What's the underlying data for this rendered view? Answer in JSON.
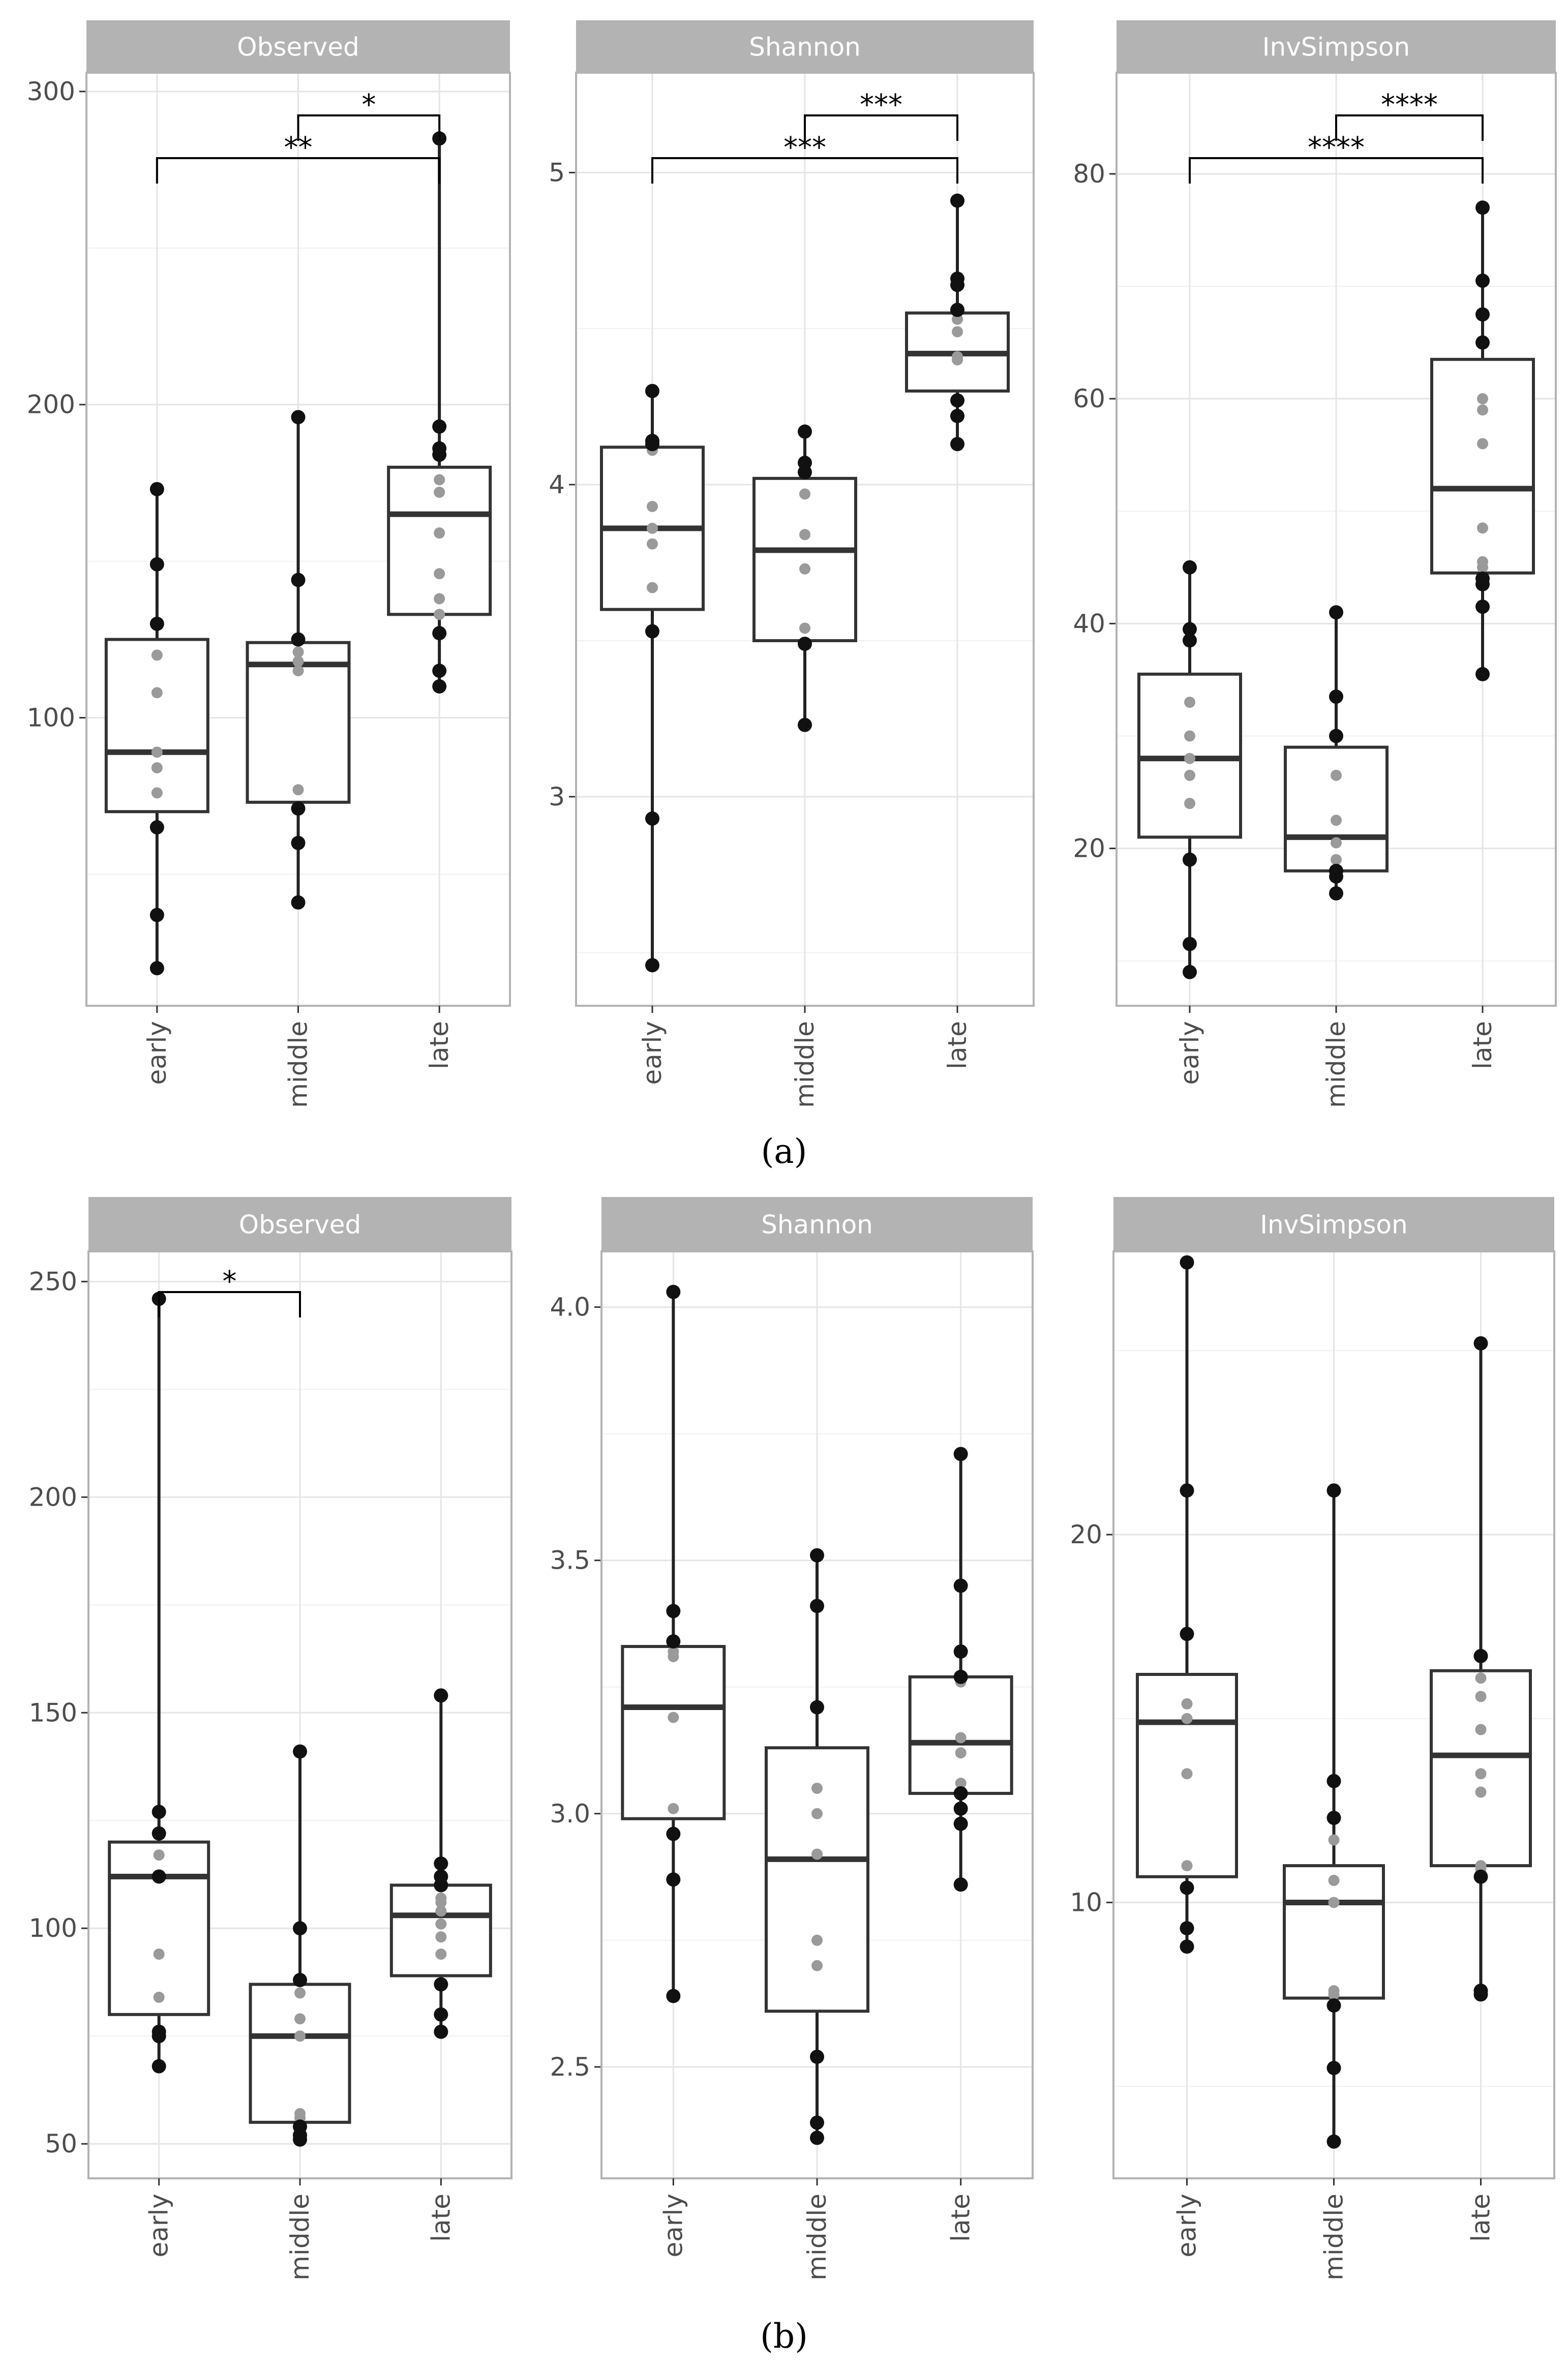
{
  "chart_data": [
    {
      "type": "box",
      "panel": "a",
      "title": "Observed",
      "categories": [
        "early",
        "middle",
        "late"
      ],
      "ylim": [
        8,
        306
      ],
      "yticks": [
        100,
        200,
        300
      ],
      "groups": [
        {
          "name": "early",
          "q1": 70,
          "median": 89,
          "q3": 125,
          "whisker_low": 20,
          "whisker_high": 173,
          "points_outer": [
            20,
            37,
            65,
            149,
            130,
            173
          ],
          "points_inner": [
            76,
            84,
            89,
            108,
            120
          ]
        },
        {
          "name": "middle",
          "q1": 73,
          "median": 117,
          "q3": 124,
          "whisker_low": 41,
          "whisker_high": 196,
          "points_outer": [
            41,
            60,
            71,
            125,
            144,
            196
          ],
          "points_inner": [
            77,
            115,
            118,
            121
          ]
        },
        {
          "name": "late",
          "q1": 133,
          "median": 165,
          "q3": 180,
          "whisker_low": 110,
          "whisker_high": 285,
          "points_outer": [
            110,
            115,
            127,
            184,
            186,
            193,
            285
          ],
          "points_inner": [
            133,
            138,
            146,
            159,
            172,
            176
          ]
        }
      ],
      "comparisons": [
        {
          "from": "middle",
          "to": "late",
          "label": "*",
          "level": 1
        },
        {
          "from": "early",
          "to": "late",
          "label": "**",
          "level": 0
        }
      ]
    },
    {
      "type": "box",
      "panel": "a",
      "title": "Shannon",
      "categories": [
        "early",
        "middle",
        "late"
      ],
      "ylim": [
        2.33,
        5.32
      ],
      "yticks": [
        3,
        4,
        5
      ],
      "groups": [
        {
          "name": "early",
          "q1": 3.6,
          "median": 3.86,
          "q3": 4.12,
          "whisker_low": 2.46,
          "whisker_high": 4.3,
          "points_outer": [
            2.46,
            2.93,
            3.53,
            4.13,
            4.14,
            4.3
          ],
          "points_inner": [
            3.67,
            3.81,
            3.86,
            3.93,
            4.11
          ]
        },
        {
          "name": "middle",
          "q1": 3.5,
          "median": 3.79,
          "q3": 4.02,
          "whisker_low": 3.23,
          "whisker_high": 4.17,
          "points_outer": [
            3.23,
            3.49,
            4.04,
            4.07,
            4.17
          ],
          "points_inner": [
            3.54,
            3.73,
            3.84,
            3.97
          ]
        },
        {
          "name": "late",
          "q1": 4.3,
          "median": 4.42,
          "q3": 4.55,
          "whisker_low": 4.13,
          "whisker_high": 4.91,
          "points_outer": [
            4.13,
            4.22,
            4.27,
            4.56,
            4.64,
            4.66,
            4.91
          ],
          "points_inner": [
            4.4,
            4.41,
            4.49,
            4.53
          ]
        }
      ],
      "comparisons": [
        {
          "from": "middle",
          "to": "late",
          "label": "***",
          "level": 1
        },
        {
          "from": "early",
          "to": "late",
          "label": "***",
          "level": 0
        }
      ]
    },
    {
      "type": "box",
      "panel": "a",
      "title": "InvSimpson",
      "categories": [
        "early",
        "middle",
        "late"
      ],
      "ylim": [
        6,
        89
      ],
      "yticks": [
        20,
        40,
        60,
        80
      ],
      "groups": [
        {
          "name": "early",
          "q1": 21,
          "median": 28,
          "q3": 35.5,
          "whisker_low": 9,
          "whisker_high": 45,
          "points_outer": [
            9,
            11.5,
            19,
            38.5,
            39.5,
            45
          ],
          "points_inner": [
            24,
            26.5,
            28,
            30,
            33
          ]
        },
        {
          "name": "middle",
          "q1": 18,
          "median": 21,
          "q3": 29,
          "whisker_low": 16,
          "whisker_high": 41,
          "points_outer": [
            16,
            17.5,
            18,
            30,
            33.5,
            41
          ],
          "points_inner": [
            19,
            20.5,
            22.5,
            26.5
          ]
        },
        {
          "name": "late",
          "q1": 44.5,
          "median": 52,
          "q3": 63.5,
          "whisker_low": 35.5,
          "whisker_high": 77,
          "points_outer": [
            35.5,
            41.5,
            43.5,
            44,
            65,
            67.5,
            70.5,
            77
          ],
          "points_inner": [
            45,
            45.5,
            48.5,
            56,
            59,
            60
          ]
        }
      ],
      "comparisons": [
        {
          "from": "middle",
          "to": "late",
          "label": "****",
          "level": 1
        },
        {
          "from": "early",
          "to": "late",
          "label": "****",
          "level": 0
        }
      ]
    },
    {
      "type": "box",
      "panel": "b",
      "title": "Observed",
      "categories": [
        "early",
        "middle",
        "late"
      ],
      "ylim": [
        42,
        257
      ],
      "yticks": [
        50,
        100,
        150,
        200,
        250
      ],
      "groups": [
        {
          "name": "early",
          "q1": 80,
          "median": 112,
          "q3": 120,
          "whisker_low": 68,
          "whisker_high": 246,
          "points_outer": [
            68,
            75,
            76,
            112,
            122,
            127,
            246
          ],
          "points_inner": [
            84,
            94,
            117
          ]
        },
        {
          "name": "middle",
          "q1": 55,
          "median": 75,
          "q3": 87,
          "whisker_low": 51,
          "whisker_high": 141,
          "points_outer": [
            51,
            52,
            54,
            88,
            100,
            141
          ],
          "points_inner": [
            56,
            57,
            75,
            79,
            85
          ]
        },
        {
          "name": "late",
          "q1": 89,
          "median": 103,
          "q3": 110,
          "whisker_low": 76,
          "whisker_high": 154,
          "points_outer": [
            76,
            80,
            87,
            110,
            112,
            115,
            154
          ],
          "points_inner": [
            94,
            98,
            101,
            104,
            106,
            107
          ]
        }
      ],
      "comparisons": [
        {
          "from": "early",
          "to": "middle",
          "label": "*",
          "level": 0
        }
      ]
    },
    {
      "type": "box",
      "panel": "b",
      "title": "Shannon",
      "categories": [
        "early",
        "middle",
        "late"
      ],
      "ylim": [
        2.28,
        4.11
      ],
      "yticks": [
        2.5,
        3.0,
        3.5,
        4.0
      ],
      "tick_labels": [
        "2.5",
        "3.0",
        "3.5",
        "4.0"
      ],
      "groups": [
        {
          "name": "early",
          "q1": 2.99,
          "median": 3.21,
          "q3": 3.33,
          "whisker_low": 2.64,
          "whisker_high": 4.03,
          "points_outer": [
            2.64,
            2.87,
            2.96,
            3.34,
            3.4,
            4.03
          ],
          "points_inner": [
            3.01,
            3.19,
            3.31,
            3.32
          ]
        },
        {
          "name": "middle",
          "q1": 2.61,
          "median": 2.91,
          "q3": 3.13,
          "whisker_low": 2.36,
          "whisker_high": 3.51,
          "points_outer": [
            2.36,
            2.39,
            2.52,
            3.21,
            3.41,
            3.51
          ],
          "points_inner": [
            2.7,
            2.75,
            2.92,
            3.0,
            3.05
          ]
        },
        {
          "name": "late",
          "q1": 3.04,
          "median": 3.14,
          "q3": 3.27,
          "whisker_low": 2.86,
          "whisker_high": 3.71,
          "points_outer": [
            2.86,
            2.98,
            3.01,
            3.04,
            3.27,
            3.32,
            3.45,
            3.71
          ],
          "points_inner": [
            3.06,
            3.12,
            3.15,
            3.26
          ]
        }
      ],
      "comparisons": []
    },
    {
      "type": "box",
      "panel": "b",
      "title": "InvSimpson",
      "categories": [
        "early",
        "middle",
        "late"
      ],
      "ylim": [
        2.5,
        27.7
      ],
      "yticks": [
        10,
        20
      ],
      "minor_ticks": [
        5,
        15,
        25
      ],
      "groups": [
        {
          "name": "early",
          "q1": 10.7,
          "median": 14.9,
          "q3": 16.2,
          "whisker_low": 8.8,
          "whisker_high": 27.4,
          "points_outer": [
            8.8,
            9.3,
            10.4,
            17.3,
            21.2,
            27.4
          ],
          "points_inner": [
            11,
            13.5,
            15,
            15.4
          ]
        },
        {
          "name": "middle",
          "q1": 7.4,
          "median": 10.0,
          "q3": 11.0,
          "whisker_low": 3.5,
          "whisker_high": 21.2,
          "points_outer": [
            3.5,
            5.5,
            7.2,
            12.3,
            13.3,
            21.2
          ],
          "points_inner": [
            7.5,
            7.6,
            10,
            10.6,
            11.7
          ]
        },
        {
          "name": "late",
          "q1": 11.0,
          "median": 14.0,
          "q3": 16.3,
          "whisker_low": 7.5,
          "whisker_high": 25.2,
          "points_outer": [
            7.5,
            7.6,
            10.7,
            16.7,
            25.2
          ],
          "points_inner": [
            10.9,
            11,
            13,
            13.5,
            14.7,
            15.6,
            16.1
          ]
        }
      ],
      "comparisons": []
    }
  ],
  "captions": {
    "a": "(a)",
    "b": "(b)"
  }
}
